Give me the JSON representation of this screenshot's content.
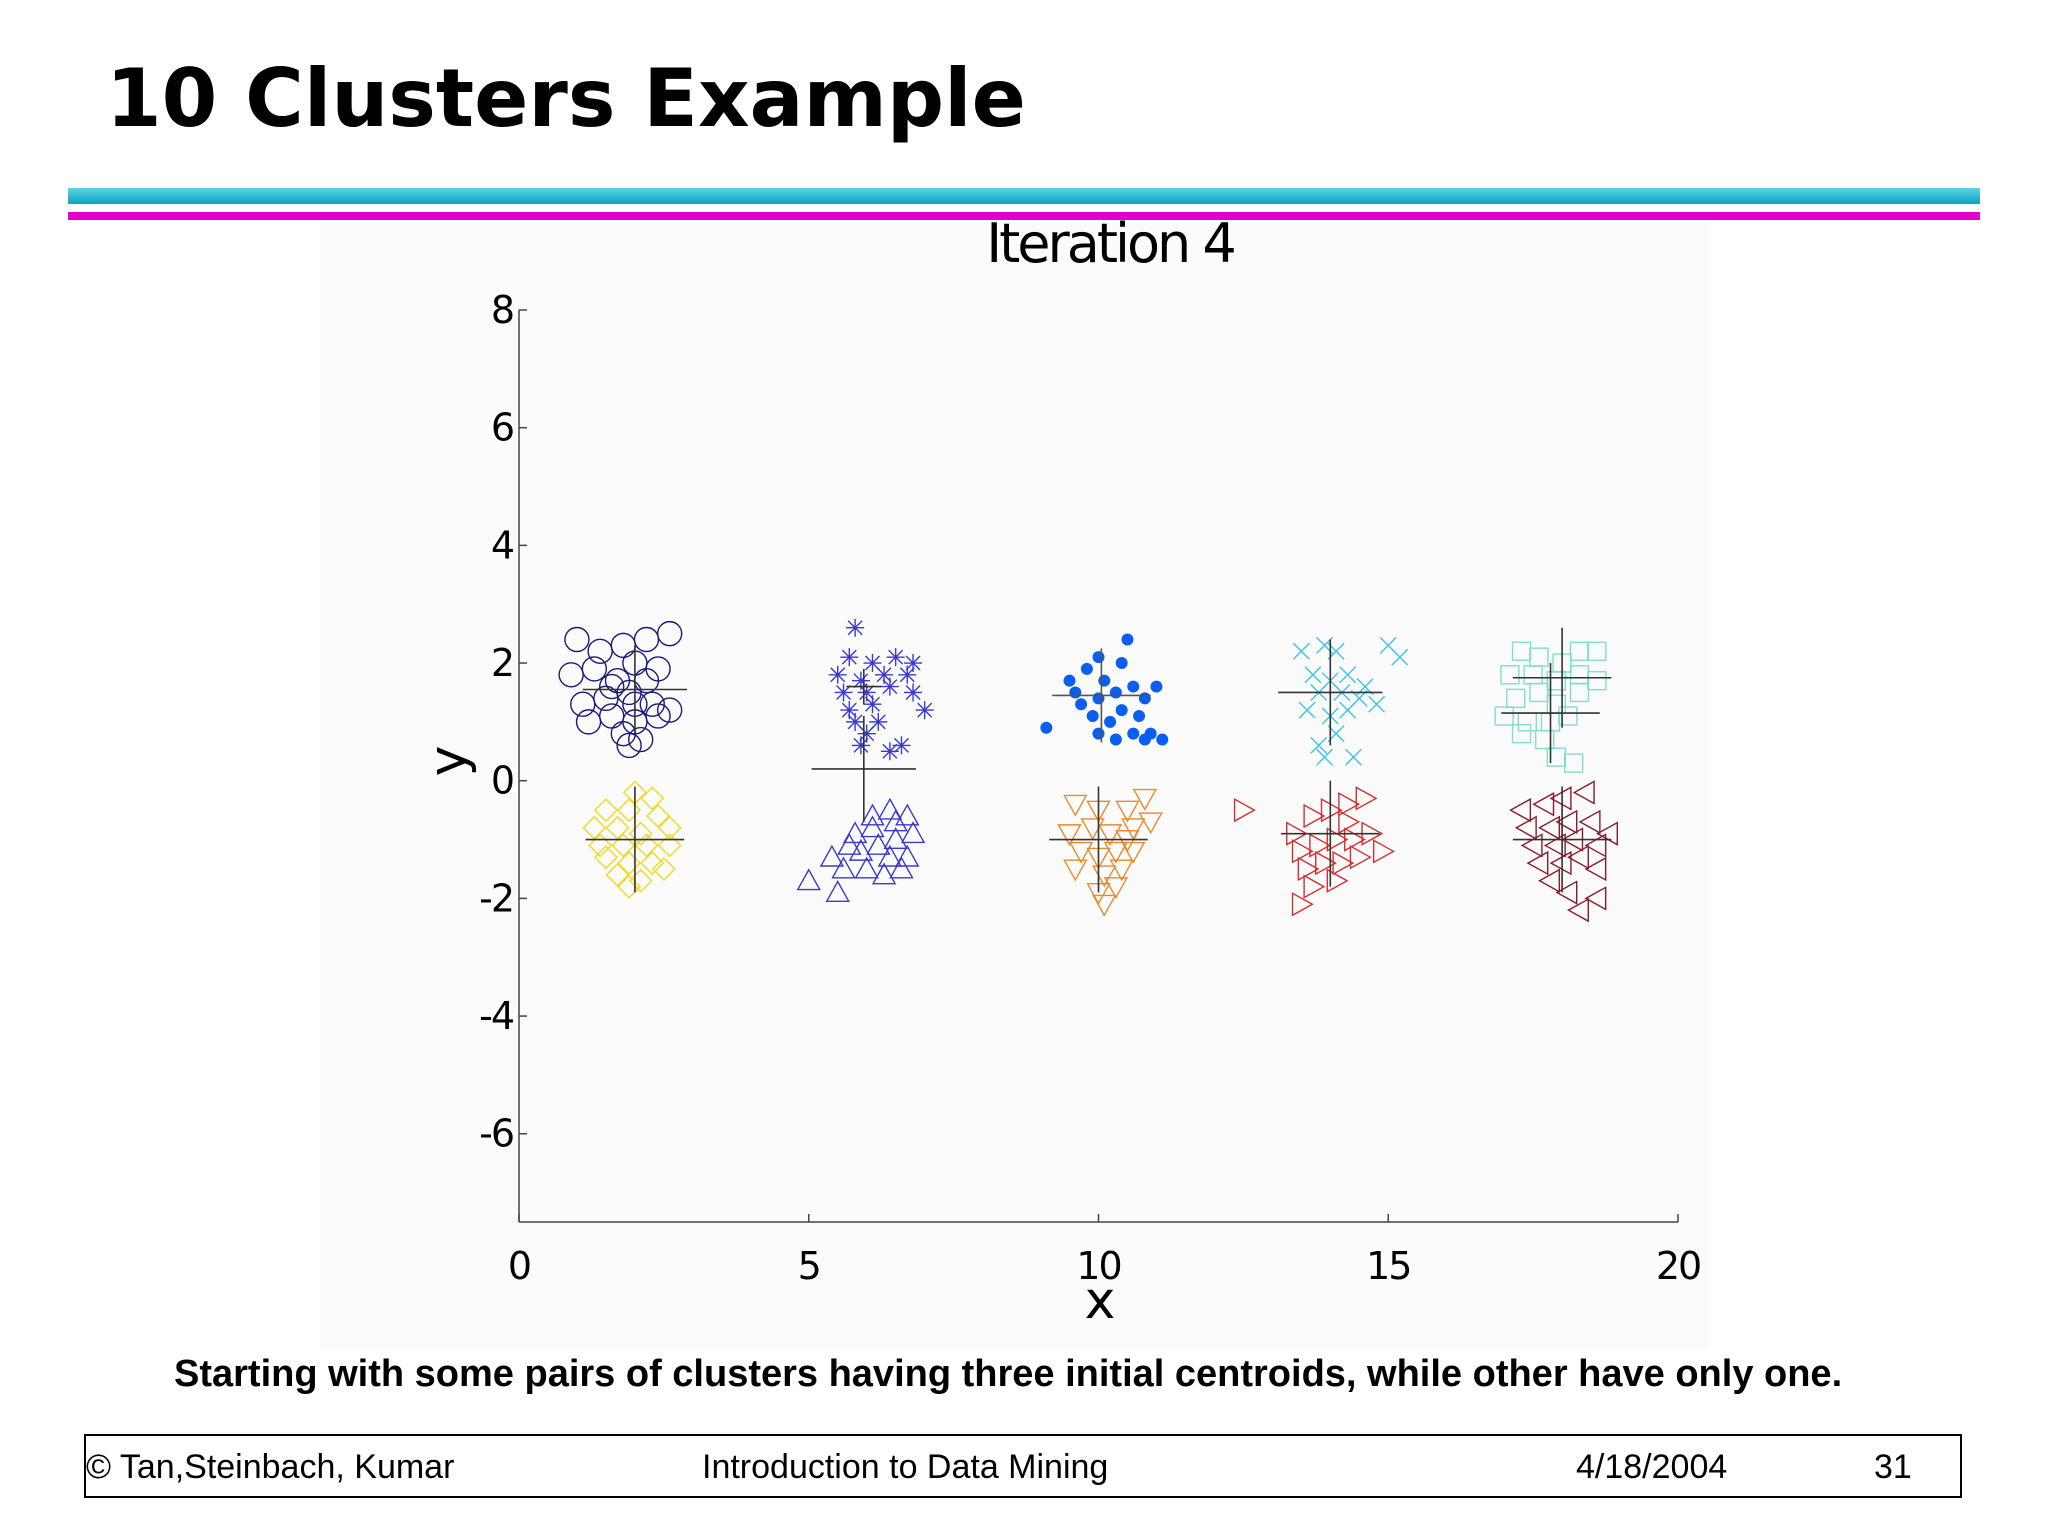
{
  "slide": {
    "title": "10 Clusters Example",
    "caption": "Starting with some pairs of clusters having three initial centroids, while other have only one.",
    "footer": {
      "author": "© Tan,Steinbach, Kumar",
      "course": "Introduction to Data Mining",
      "date": "4/18/2004",
      "page": "31"
    },
    "colors": {
      "accent_cyan": "#0aa3c2",
      "accent_magenta": "#e100cc"
    }
  },
  "chart_data": {
    "type": "scatter",
    "title": "Iteration 4",
    "xlabel": "x",
    "ylabel": "y",
    "xlim": [
      0,
      20
    ],
    "ylim": [
      -7.5,
      8
    ],
    "xticks": [
      0,
      5,
      10,
      15,
      20
    ],
    "yticks": [
      8,
      6,
      4,
      2,
      0,
      -2,
      -4,
      -6
    ],
    "grid": false,
    "series": [
      {
        "marker": "circle",
        "color": "#1a1a7a",
        "points": [
          [
            1.0,
            2.4
          ],
          [
            1.4,
            2.2
          ],
          [
            1.8,
            2.3
          ],
          [
            2.2,
            2.4
          ],
          [
            2.6,
            2.5
          ],
          [
            0.9,
            1.8
          ],
          [
            1.3,
            1.9
          ],
          [
            1.7,
            1.7
          ],
          [
            2.0,
            2.0
          ],
          [
            2.4,
            1.9
          ],
          [
            1.1,
            1.3
          ],
          [
            1.5,
            1.4
          ],
          [
            1.9,
            1.5
          ],
          [
            2.3,
            1.3
          ],
          [
            2.6,
            1.2
          ],
          [
            1.2,
            1.0
          ],
          [
            1.6,
            1.1
          ],
          [
            2.0,
            1.0
          ],
          [
            2.4,
            1.1
          ],
          [
            1.8,
            0.8
          ],
          [
            2.1,
            0.7
          ],
          [
            1.9,
            0.6
          ],
          [
            2.0,
            1.3
          ],
          [
            1.6,
            1.6
          ],
          [
            2.2,
            1.7
          ]
        ]
      },
      {
        "marker": "asterisk",
        "color": "#3a3ad0",
        "points": [
          [
            5.8,
            2.6
          ],
          [
            5.7,
            2.1
          ],
          [
            6.1,
            2.0
          ],
          [
            6.5,
            2.1
          ],
          [
            6.8,
            2.0
          ],
          [
            5.5,
            1.8
          ],
          [
            5.9,
            1.7
          ],
          [
            6.3,
            1.8
          ],
          [
            6.7,
            1.8
          ],
          [
            5.6,
            1.5
          ],
          [
            6.0,
            1.5
          ],
          [
            6.4,
            1.6
          ],
          [
            6.8,
            1.5
          ],
          [
            5.7,
            1.2
          ],
          [
            6.1,
            1.3
          ],
          [
            7.0,
            1.2
          ],
          [
            5.8,
            1.0
          ],
          [
            6.0,
            0.8
          ],
          [
            5.9,
            0.6
          ],
          [
            6.6,
            0.6
          ],
          [
            6.4,
            0.5
          ],
          [
            6.2,
            1.0
          ]
        ]
      },
      {
        "marker": "dot",
        "color": "#0a5ef2",
        "points": [
          [
            9.1,
            0.9
          ],
          [
            9.6,
            1.5
          ],
          [
            9.8,
            1.9
          ],
          [
            10.0,
            2.1
          ],
          [
            10.4,
            2.0
          ],
          [
            10.5,
            2.4
          ],
          [
            9.7,
            1.3
          ],
          [
            10.0,
            1.4
          ],
          [
            10.3,
            1.5
          ],
          [
            10.6,
            1.6
          ],
          [
            10.8,
            1.4
          ],
          [
            9.9,
            1.1
          ],
          [
            10.2,
            1.0
          ],
          [
            10.4,
            1.2
          ],
          [
            10.7,
            1.1
          ],
          [
            10.0,
            0.8
          ],
          [
            10.3,
            0.7
          ],
          [
            10.6,
            0.8
          ],
          [
            10.9,
            0.8
          ],
          [
            11.0,
            1.6
          ],
          [
            10.1,
            1.7
          ],
          [
            9.5,
            1.7
          ],
          [
            10.8,
            0.7
          ],
          [
            11.1,
            0.7
          ]
        ]
      },
      {
        "marker": "x",
        "color": "#3cc4e8",
        "points": [
          [
            13.5,
            2.2
          ],
          [
            13.9,
            2.3
          ],
          [
            14.1,
            2.2
          ],
          [
            15.0,
            2.3
          ],
          [
            15.2,
            2.1
          ],
          [
            13.7,
            1.8
          ],
          [
            14.0,
            1.7
          ],
          [
            14.3,
            1.8
          ],
          [
            13.8,
            1.5
          ],
          [
            14.2,
            1.5
          ],
          [
            14.5,
            1.4
          ],
          [
            13.6,
            1.2
          ],
          [
            14.0,
            1.1
          ],
          [
            14.3,
            1.2
          ],
          [
            14.8,
            1.3
          ],
          [
            14.1,
            0.8
          ],
          [
            13.8,
            0.6
          ],
          [
            13.9,
            0.4
          ],
          [
            14.4,
            0.4
          ],
          [
            14.6,
            1.6
          ]
        ]
      },
      {
        "marker": "square",
        "color": "#7fe0c8",
        "points": [
          [
            17.3,
            2.2
          ],
          [
            17.6,
            2.1
          ],
          [
            18.0,
            2.0
          ],
          [
            18.3,
            2.2
          ],
          [
            18.6,
            2.2
          ],
          [
            17.1,
            1.8
          ],
          [
            17.5,
            1.8
          ],
          [
            17.9,
            1.7
          ],
          [
            18.3,
            1.8
          ],
          [
            18.6,
            1.7
          ],
          [
            17.2,
            1.4
          ],
          [
            17.6,
            1.5
          ],
          [
            17.9,
            1.3
          ],
          [
            18.3,
            1.5
          ],
          [
            17.0,
            1.1
          ],
          [
            17.4,
            1.0
          ],
          [
            17.8,
            1.0
          ],
          [
            18.1,
            1.1
          ],
          [
            17.3,
            0.8
          ],
          [
            17.7,
            0.7
          ],
          [
            17.9,
            0.4
          ],
          [
            18.2,
            0.3
          ]
        ]
      },
      {
        "marker": "diamond",
        "color": "#f2d820",
        "points": [
          [
            2.0,
            -0.2
          ],
          [
            1.5,
            -0.5
          ],
          [
            1.9,
            -0.5
          ],
          [
            2.4,
            -0.6
          ],
          [
            1.3,
            -0.8
          ],
          [
            1.7,
            -0.8
          ],
          [
            2.1,
            -0.9
          ],
          [
            2.6,
            -0.8
          ],
          [
            1.4,
            -1.1
          ],
          [
            1.8,
            -1.1
          ],
          [
            2.2,
            -1.1
          ],
          [
            2.6,
            -1.1
          ],
          [
            1.5,
            -1.3
          ],
          [
            1.9,
            -1.4
          ],
          [
            2.3,
            -1.4
          ],
          [
            1.7,
            -1.6
          ],
          [
            2.1,
            -1.7
          ],
          [
            2.5,
            -1.5
          ],
          [
            1.9,
            -1.8
          ],
          [
            2.3,
            -0.3
          ]
        ]
      },
      {
        "marker": "triangle-up",
        "color": "#3a3acc",
        "points": [
          [
            5.0,
            -1.7
          ],
          [
            5.5,
            -1.9
          ],
          [
            5.4,
            -1.3
          ],
          [
            5.8,
            -0.9
          ],
          [
            6.1,
            -0.6
          ],
          [
            6.4,
            -0.5
          ],
          [
            6.7,
            -0.6
          ],
          [
            5.9,
            -1.2
          ],
          [
            6.2,
            -1.1
          ],
          [
            6.5,
            -1.0
          ],
          [
            6.8,
            -0.9
          ],
          [
            6.0,
            -1.5
          ],
          [
            6.3,
            -1.6
          ],
          [
            6.6,
            -1.5
          ],
          [
            5.7,
            -1.1
          ],
          [
            6.1,
            -0.8
          ],
          [
            6.4,
            -1.3
          ],
          [
            6.7,
            -1.3
          ],
          [
            5.6,
            -1.5
          ],
          [
            6.5,
            -0.7
          ]
        ]
      },
      {
        "marker": "triangle-down",
        "color": "#e88a2e",
        "points": [
          [
            9.6,
            -0.4
          ],
          [
            10.0,
            -0.5
          ],
          [
            10.5,
            -0.5
          ],
          [
            10.8,
            -0.3
          ],
          [
            9.5,
            -0.9
          ],
          [
            9.9,
            -0.8
          ],
          [
            10.2,
            -0.9
          ],
          [
            10.6,
            -0.8
          ],
          [
            10.9,
            -0.7
          ],
          [
            9.7,
            -1.2
          ],
          [
            10.0,
            -1.3
          ],
          [
            10.3,
            -1.2
          ],
          [
            10.6,
            -1.2
          ],
          [
            9.6,
            -1.5
          ],
          [
            10.1,
            -1.6
          ],
          [
            10.4,
            -1.5
          ],
          [
            10.0,
            -1.9
          ],
          [
            10.3,
            -1.8
          ],
          [
            10.1,
            -2.1
          ],
          [
            10.5,
            -1.0
          ]
        ]
      },
      {
        "marker": "triangle-right",
        "color": "#d43030",
        "points": [
          [
            12.5,
            -0.5
          ],
          [
            13.4,
            -0.9
          ],
          [
            13.7,
            -0.6
          ],
          [
            14.0,
            -0.5
          ],
          [
            14.3,
            -0.4
          ],
          [
            14.6,
            -0.3
          ],
          [
            13.5,
            -1.2
          ],
          [
            13.8,
            -1.1
          ],
          [
            14.1,
            -1.0
          ],
          [
            14.4,
            -1.0
          ],
          [
            14.7,
            -0.9
          ],
          [
            13.6,
            -1.5
          ],
          [
            13.9,
            -1.4
          ],
          [
            14.2,
            -1.4
          ],
          [
            14.5,
            -1.3
          ],
          [
            14.9,
            -1.2
          ],
          [
            13.7,
            -1.8
          ],
          [
            14.1,
            -1.7
          ],
          [
            13.5,
            -2.1
          ],
          [
            14.3,
            -0.7
          ]
        ]
      },
      {
        "marker": "triangle-left",
        "color": "#8a1c2a",
        "points": [
          [
            17.3,
            -0.5
          ],
          [
            17.7,
            -0.4
          ],
          [
            18.0,
            -0.3
          ],
          [
            18.4,
            -0.2
          ],
          [
            17.4,
            -0.8
          ],
          [
            17.8,
            -0.8
          ],
          [
            18.1,
            -0.7
          ],
          [
            18.5,
            -0.7
          ],
          [
            18.8,
            -0.9
          ],
          [
            17.5,
            -1.1
          ],
          [
            17.9,
            -1.1
          ],
          [
            18.2,
            -1.0
          ],
          [
            18.6,
            -1.1
          ],
          [
            17.6,
            -1.4
          ],
          [
            18.0,
            -1.4
          ],
          [
            18.3,
            -1.3
          ],
          [
            18.6,
            -1.5
          ],
          [
            17.8,
            -1.7
          ],
          [
            18.1,
            -1.9
          ],
          [
            18.6,
            -2.0
          ],
          [
            18.3,
            -2.2
          ]
        ]
      }
    ],
    "centroids": [
      {
        "x": 2.0,
        "y": 1.55,
        "hx": 0.9,
        "hy": 0.75,
        "color": "#333333"
      },
      {
        "x": 5.95,
        "y": 1.6,
        "hx": 0.3,
        "hy": 0.3,
        "color": "#333333"
      },
      {
        "x": 10.05,
        "y": 1.45,
        "hx": 0.85,
        "hy": 0.8,
        "color": "#555555"
      },
      {
        "x": 14.0,
        "y": 1.5,
        "hx": 0.9,
        "hy": 0.9,
        "color": "#333333"
      },
      {
        "x": 18.0,
        "y": 1.75,
        "hx": 0.85,
        "hy": 0.85,
        "color": "#333333"
      },
      {
        "x": 17.8,
        "y": 1.15,
        "hx": 0.85,
        "hy": 0.85,
        "color": "#333333"
      },
      {
        "x": 2.0,
        "y": -1.0,
        "hx": 0.85,
        "hy": 0.9,
        "color": "#333333"
      },
      {
        "x": 5.95,
        "y": 0.2,
        "hx": 0.9,
        "hy": 0.9,
        "color": "#333333"
      },
      {
        "x": 10.0,
        "y": -1.0,
        "hx": 0.85,
        "hy": 0.9,
        "color": "#333333"
      },
      {
        "x": 14.0,
        "y": -0.9,
        "hx": 0.85,
        "hy": 0.9,
        "color": "#333333"
      },
      {
        "x": 18.0,
        "y": -1.0,
        "hx": 0.85,
        "hy": 0.9,
        "color": "#333333"
      }
    ]
  }
}
